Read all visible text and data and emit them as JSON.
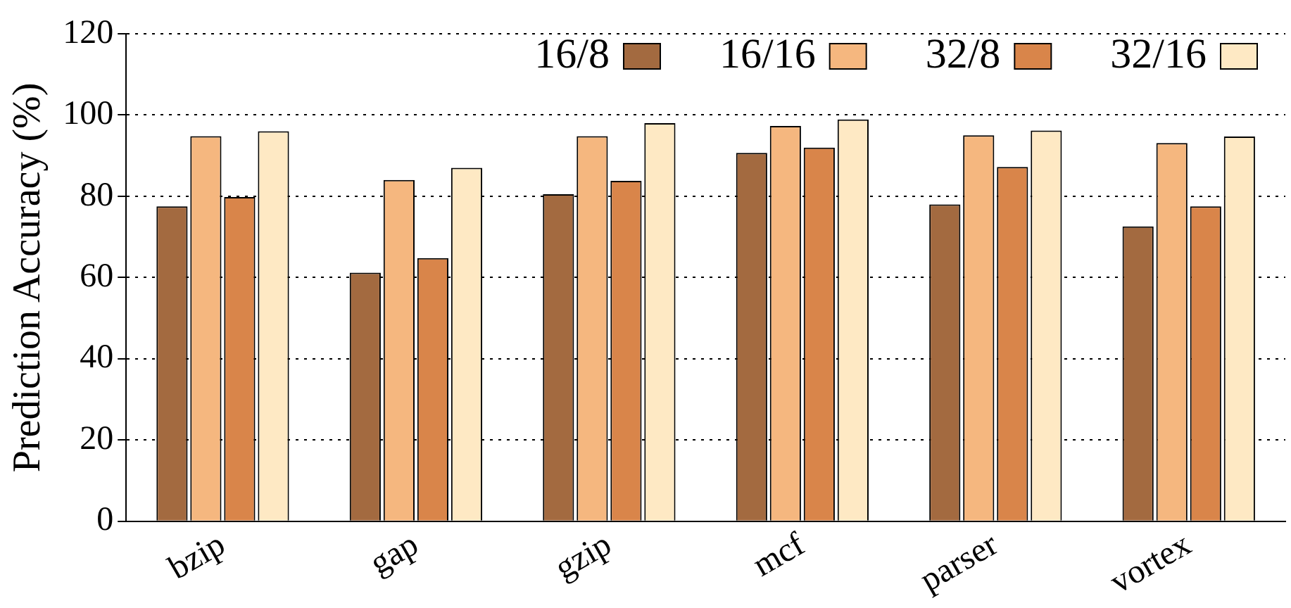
{
  "chart_data": {
    "type": "bar",
    "ylabel": "Prediction Accuracy (%)",
    "categories": [
      "bzip",
      "gap",
      "gzip",
      "mcf",
      "parser",
      "vortex"
    ],
    "series": [
      {
        "name": "16/8",
        "color": "#a36a40",
        "values": [
          77.5,
          61.2,
          80.5,
          90.7,
          78,
          72.6
        ]
      },
      {
        "name": "16/16",
        "color": "#f5b77f",
        "values": [
          94.8,
          84,
          94.8,
          97.3,
          95,
          93.1
        ]
      },
      {
        "name": "32/8",
        "color": "#d9854a",
        "values": [
          79.8,
          64.8,
          83.8,
          92,
          87.2,
          77.5
        ]
      },
      {
        "name": "32/16",
        "color": "#fee9c4",
        "values": [
          96,
          87,
          98,
          98.9,
          96.2,
          94.7
        ]
      }
    ],
    "ylim": [
      0,
      120
    ],
    "yticks": [
      0,
      20,
      40,
      60,
      80,
      100,
      120
    ],
    "grid": "y",
    "legend": "top right"
  }
}
